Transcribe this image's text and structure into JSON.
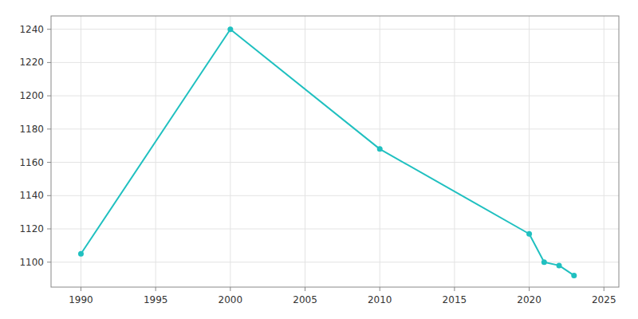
{
  "chart_data": {
    "type": "line",
    "x": [
      1990,
      2000,
      2010,
      2020,
      2021,
      2022,
      2023
    ],
    "values": [
      1105,
      1240,
      1168,
      1117,
      1100,
      1098,
      1092
    ],
    "color": "#20c0c0",
    "marker": "circle",
    "xlim": [
      1988,
      2026
    ],
    "ylim": [
      1085,
      1248
    ],
    "xticks": [
      1990,
      1995,
      2000,
      2005,
      2010,
      2015,
      2020,
      2025
    ],
    "yticks": [
      1100,
      1120,
      1140,
      1160,
      1180,
      1200,
      1220,
      1240
    ],
    "grid": true
  }
}
